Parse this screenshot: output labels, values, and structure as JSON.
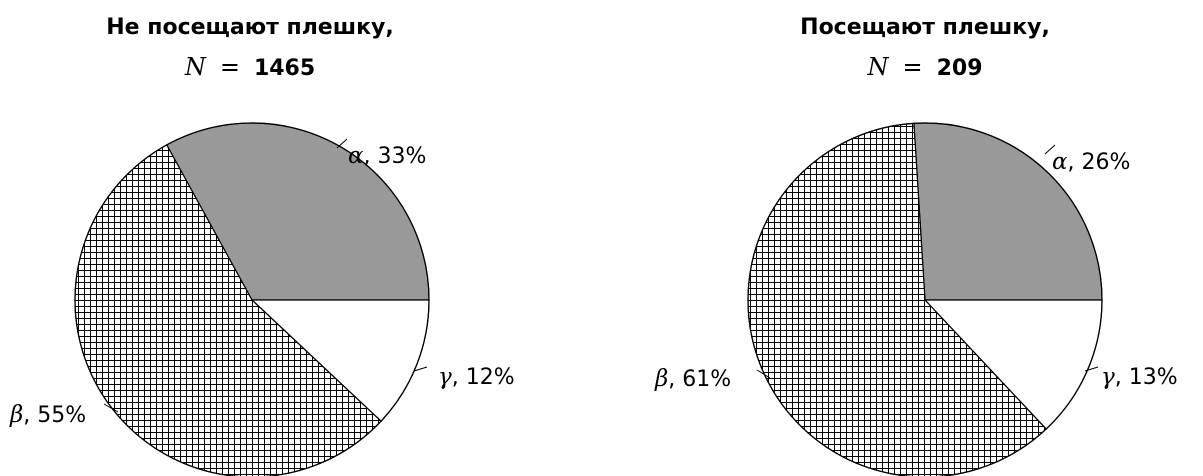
{
  "chart_data": [
    {
      "type": "pie",
      "title": "Не посещают плешку,",
      "n_label": "N",
      "n_value": "1465",
      "slices": [
        {
          "name": "α",
          "percent_label": "33%",
          "value": 33,
          "fill": "#999999"
        },
        {
          "name": "γ",
          "percent_label": "12%",
          "value": 12,
          "fill": "#ffffff"
        },
        {
          "name": "β",
          "percent_label": "55%",
          "value": 55,
          "fill": "grid-pattern"
        }
      ]
    },
    {
      "type": "pie",
      "title": "Посещают плешку,",
      "n_label": "N",
      "n_value": "209",
      "slices": [
        {
          "name": "α",
          "percent_label": "26%",
          "value": 26,
          "fill": "#999999"
        },
        {
          "name": "γ",
          "percent_label": "13%",
          "value": 13,
          "fill": "#ffffff"
        },
        {
          "name": "β",
          "percent_label": "61%",
          "value": 61,
          "fill": "grid-pattern"
        }
      ]
    }
  ]
}
